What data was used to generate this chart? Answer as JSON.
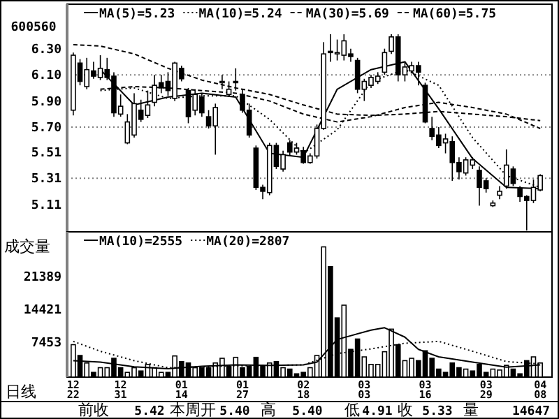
{
  "chart_data": [
    {
      "type": "candlestick",
      "title": "600560",
      "legend": "top",
      "tick_labels": "y",
      "ylim": [
        4.9,
        6.64
      ],
      "yticks": [
        {
          "value": 6.3,
          "label": "6.30"
        },
        {
          "value": 6.1,
          "label": "6.10"
        },
        {
          "value": 5.9,
          "label": "5.90"
        },
        {
          "value": 5.7,
          "label": "5.70"
        },
        5.51,
        5.31,
        5.11
      ],
      "ref_lines": [
        {
          "axis": "y",
          "value": 6.1,
          "color": "#808080",
          "line_style": "dotted"
        },
        {
          "axis": "y",
          "value": 5.7,
          "color": "#808080",
          "line_style": "dotted"
        },
        {
          "axis": "y",
          "value": 5.31,
          "color": "#808080",
          "line_style": "dotted"
        }
      ],
      "ohlc": [
        [
          5.83,
          6.27,
          5.79,
          6.25
        ],
        [
          6.19,
          6.22,
          6.02,
          6.05
        ],
        [
          6.01,
          6.23,
          5.99,
          6.14
        ],
        [
          6.13,
          6.2,
          6.07,
          6.09
        ],
        [
          6.08,
          6.25,
          6.06,
          6.15
        ],
        [
          6.14,
          6.23,
          6.06,
          6.08
        ],
        [
          6.09,
          6.12,
          5.78,
          5.81
        ],
        [
          5.8,
          5.95,
          5.78,
          5.86
        ],
        [
          5.58,
          5.8,
          5.57,
          5.74
        ],
        [
          5.64,
          5.96,
          5.62,
          5.88
        ],
        [
          5.83,
          5.91,
          5.74,
          5.76
        ],
        [
          5.79,
          5.98,
          5.77,
          5.87
        ],
        [
          5.89,
          6.1,
          5.86,
          6.02
        ],
        [
          6.04,
          6.1,
          5.96,
          6.0
        ],
        [
          6.05,
          6.12,
          5.94,
          5.98
        ],
        [
          5.92,
          6.2,
          5.9,
          6.19
        ],
        [
          6.15,
          6.17,
          6.05,
          6.07
        ],
        [
          5.98,
          6.0,
          5.73,
          5.78
        ],
        [
          5.83,
          5.99,
          5.79,
          5.95
        ],
        [
          5.93,
          5.96,
          5.78,
          5.81
        ],
        [
          5.78,
          5.83,
          5.69,
          5.71
        ],
        [
          5.71,
          5.88,
          5.49,
          5.85
        ],
        [
          6.04,
          6.1,
          5.99,
          6.05
        ],
        [
          5.95,
          6.05,
          5.93,
          5.99
        ],
        [
          6.05,
          6.15,
          5.98,
          6.04
        ],
        [
          5.95,
          5.99,
          5.81,
          5.83
        ],
        [
          5.83,
          5.88,
          5.62,
          5.64
        ],
        [
          5.54,
          5.56,
          5.22,
          5.24
        ],
        [
          5.24,
          5.26,
          5.15,
          5.21
        ],
        [
          5.2,
          5.58,
          5.18,
          5.56
        ],
        [
          5.56,
          5.58,
          5.38,
          5.4
        ],
        [
          5.38,
          5.52,
          5.36,
          5.49
        ],
        [
          5.58,
          5.6,
          5.48,
          5.51
        ],
        [
          5.51,
          5.58,
          5.49,
          5.54
        ],
        [
          5.52,
          5.55,
          5.42,
          5.43
        ],
        [
          5.43,
          5.5,
          5.42,
          5.48
        ],
        [
          5.48,
          5.72,
          5.46,
          5.69
        ],
        [
          5.69,
          6.35,
          5.68,
          6.26
        ],
        [
          6.28,
          6.41,
          6.2,
          6.27
        ],
        [
          6.26,
          6.37,
          6.21,
          6.27
        ],
        [
          6.25,
          6.41,
          6.21,
          6.36
        ],
        [
          6.26,
          6.3,
          6.2,
          6.24
        ],
        [
          6.21,
          6.23,
          5.96,
          5.99
        ],
        [
          5.99,
          6.07,
          5.9,
          6.05
        ],
        [
          6.02,
          6.1,
          6.0,
          6.08
        ],
        [
          6.05,
          6.12,
          6.03,
          6.09
        ],
        [
          6.12,
          6.3,
          6.1,
          6.27
        ],
        [
          6.28,
          6.41,
          6.26,
          6.39
        ],
        [
          6.39,
          6.41,
          6.05,
          6.1
        ],
        [
          6.1,
          6.2,
          6.05,
          6.16
        ],
        [
          6.13,
          6.2,
          6.11,
          6.17
        ],
        [
          6.17,
          6.2,
          6.02,
          6.12
        ],
        [
          6.02,
          6.04,
          5.73,
          5.74
        ],
        [
          5.69,
          5.78,
          5.6,
          5.63
        ],
        [
          5.64,
          5.7,
          5.54,
          5.56
        ],
        [
          5.58,
          5.65,
          5.5,
          5.61
        ],
        [
          5.59,
          5.63,
          5.29,
          5.43
        ],
        [
          5.43,
          5.47,
          5.3,
          5.36
        ],
        [
          5.35,
          5.47,
          5.33,
          5.45
        ],
        [
          5.41,
          5.47,
          5.38,
          5.45
        ],
        [
          5.37,
          5.4,
          5.1,
          5.24
        ],
        [
          5.29,
          5.31,
          5.2,
          5.23
        ],
        [
          5.1,
          5.14,
          5.09,
          5.12
        ],
        [
          5.18,
          5.25,
          5.15,
          5.21
        ],
        [
          5.25,
          5.53,
          5.23,
          5.41
        ],
        [
          5.38,
          5.4,
          5.25,
          5.27
        ],
        [
          5.23,
          5.25,
          5.13,
          5.17
        ],
        [
          5.17,
          5.18,
          4.91,
          5.14
        ],
        [
          5.14,
          5.3,
          5.12,
          5.24
        ],
        [
          5.22,
          5.34,
          5.21,
          5.33
        ]
      ],
      "series": [
        {
          "name": "MA(5)=5.23",
          "type": "line",
          "color": "#000000",
          "line_style": "solid",
          "values": [
            null,
            null,
            null,
            null,
            6.14,
            null,
            null,
            null,
            null,
            5.87,
            null,
            null,
            null,
            null,
            5.93,
            null,
            null,
            null,
            null,
            5.96,
            null,
            null,
            null,
            null,
            5.93,
            null,
            null,
            null,
            null,
            5.5,
            null,
            null,
            null,
            null,
            5.47,
            null,
            null,
            null,
            null,
            5.99,
            null,
            null,
            null,
            null,
            6.14,
            null,
            null,
            null,
            null,
            6.2,
            null,
            null,
            null,
            null,
            5.84,
            null,
            null,
            null,
            null,
            5.46,
            null,
            null,
            null,
            null,
            5.24,
            null,
            null,
            null,
            null,
            5.23
          ]
        },
        {
          "name": "MA(10)=5.24",
          "type": "line",
          "color": "#000000",
          "line_style": "dotted",
          "values": [
            null,
            null,
            null,
            null,
            5.98,
            null,
            null,
            null,
            null,
            6.0,
            null,
            null,
            null,
            null,
            5.92,
            null,
            null,
            null,
            null,
            5.94,
            null,
            null,
            null,
            null,
            5.94,
            null,
            null,
            null,
            null,
            5.76,
            null,
            null,
            null,
            null,
            5.5,
            null,
            null,
            null,
            null,
            5.68,
            null,
            null,
            null,
            null,
            6.05,
            null,
            null,
            null,
            null,
            6.14,
            null,
            null,
            null,
            null,
            6.02,
            null,
            null,
            null,
            null,
            5.62,
            null,
            null,
            null,
            null,
            5.33,
            null,
            null,
            null,
            null,
            5.24
          ]
        },
        {
          "name": "MA(30)=5.69",
          "type": "line",
          "color": "#000000",
          "line_style": "dashed",
          "values": [
            null,
            null,
            null,
            null,
            5.99,
            null,
            null,
            null,
            null,
            6.01,
            null,
            null,
            null,
            null,
            6.0,
            null,
            null,
            null,
            null,
            5.98,
            null,
            null,
            null,
            null,
            5.96,
            null,
            null,
            null,
            null,
            5.9,
            null,
            null,
            null,
            null,
            5.8,
            null,
            null,
            null,
            null,
            5.74,
            null,
            null,
            null,
            null,
            5.78,
            null,
            null,
            null,
            null,
            5.85,
            null,
            null,
            null,
            null,
            5.89,
            null,
            null,
            null,
            null,
            5.85,
            null,
            null,
            null,
            null,
            5.8,
            null,
            null,
            null,
            null,
            5.69
          ]
        },
        {
          "name": "MA(60)=5.75",
          "type": "line",
          "color": "#000000",
          "line_style": "dashed",
          "values": [
            6.33,
            null,
            null,
            null,
            6.32,
            null,
            null,
            null,
            null,
            6.26,
            null,
            null,
            null,
            null,
            6.15,
            null,
            null,
            null,
            null,
            6.06,
            null,
            null,
            null,
            null,
            6.0,
            null,
            null,
            null,
            null,
            5.95,
            null,
            null,
            null,
            null,
            5.87,
            null,
            null,
            null,
            null,
            5.8,
            null,
            null,
            null,
            null,
            5.79,
            null,
            null,
            null,
            null,
            5.8,
            null,
            null,
            null,
            null,
            5.82,
            null,
            null,
            null,
            null,
            5.8,
            null,
            null,
            null,
            null,
            5.78,
            null,
            null,
            null,
            null,
            5.75
          ]
        }
      ]
    },
    {
      "type": "bar",
      "ylabel": "成交量",
      "legend": "top",
      "categories": [
        "12\n22",
        null,
        null,
        null,
        null,
        null,
        null,
        "12\n31",
        null,
        null,
        null,
        null,
        null,
        null,
        null,
        null,
        "01\n14",
        null,
        null,
        null,
        null,
        null,
        null,
        null,
        null,
        "01\n27",
        null,
        null,
        null,
        null,
        null,
        null,
        null,
        null,
        "02\n18",
        null,
        null,
        null,
        null,
        null,
        null,
        null,
        null,
        "03\n03",
        null,
        null,
        null,
        null,
        null,
        null,
        null,
        null,
        "03\n16",
        null,
        null,
        null,
        null,
        null,
        null,
        null,
        null,
        "03\n29",
        null,
        null,
        null,
        null,
        null,
        null,
        null,
        "04\n08"
      ],
      "ylim": [
        0,
        30900
      ],
      "yticks": [
        7453,
        14421,
        21389
      ],
      "annotations": [
        "日线",
        "前收",
        "5.42",
        "本周开",
        "5.40",
        "高",
        "5.40",
        "低",
        "4.91",
        "收",
        "5.33",
        "量",
        "14647"
      ],
      "series": [
        {
          "type": "bar",
          "values": [
            6900,
            4600,
            3000,
            1000,
            2000,
            2000,
            4000,
            2000,
            1000,
            2000,
            1300,
            2700,
            2000,
            1000,
            1000,
            4500,
            3300,
            3000,
            2000,
            2000,
            2000,
            3000,
            4000,
            2300,
            4200,
            2000,
            2300,
            4200,
            2300,
            3000,
            3300,
            2000,
            1700,
            700,
            1000,
            2000,
            4600,
            27700,
            23500,
            12600,
            15300,
            5900,
            8100,
            4300,
            2700,
            2700,
            5400,
            10200,
            6900,
            3500,
            4000,
            3500,
            5600,
            4000,
            1700,
            1000,
            3000,
            2000,
            1700,
            1300,
            2700,
            1000,
            1700,
            1500,
            2500,
            1700,
            700,
            3500,
            4300,
            3000
          ],
          "colors": [
            "#ffffff",
            "#000000",
            "#ffffff",
            "#000000",
            "#ffffff",
            "#ffffff",
            "#000000",
            "#000000",
            "#ffffff",
            "#ffffff",
            "#000000",
            "#ffffff",
            "#ffffff",
            "#ffffff",
            "#000000",
            "#ffffff",
            "#000000",
            "#000000",
            "#ffffff",
            "#000000",
            "#000000",
            "#ffffff",
            "#ffffff",
            "#000000",
            "#ffffff",
            "#000000",
            "#000000",
            "#000000",
            "#000000",
            "#ffffff",
            "#000000",
            "#ffffff",
            "#000000",
            "#000000",
            "#000000",
            "#ffffff",
            "#ffffff",
            "#ffffff",
            "#000000",
            "#000000",
            "#ffffff",
            "#000000",
            "#000000",
            "#ffffff",
            "#ffffff",
            "#ffffff",
            "#ffffff",
            "#ffffff",
            "#000000",
            "#ffffff",
            "#ffffff",
            "#000000",
            "#000000",
            "#000000",
            "#000000",
            "#000000",
            "#000000",
            "#000000",
            "#ffffff",
            "#000000",
            "#000000",
            "#000000",
            "#ffffff",
            "#ffffff",
            "#ffffff",
            "#000000",
            "#000000",
            "#000000",
            "#ffffff",
            "#ffffff"
          ]
        },
        {
          "name": "MA(10)=2555",
          "type": "line",
          "color": "#000000",
          "line_style": "solid",
          "values": [
            3500,
            null,
            null,
            null,
            3200,
            null,
            null,
            null,
            null,
            2200,
            null,
            null,
            null,
            null,
            1800,
            null,
            null,
            null,
            null,
            2300,
            null,
            null,
            null,
            null,
            2600,
            null,
            null,
            null,
            null,
            2500,
            null,
            null,
            null,
            null,
            2600,
            null,
            3200,
            null,
            null,
            8000,
            null,
            null,
            null,
            null,
            10000,
            null,
            10500,
            null,
            null,
            8500,
            null,
            5900,
            null,
            null,
            4300,
            null,
            null,
            null,
            null,
            3200,
            null,
            null,
            null,
            null,
            2100,
            null,
            null,
            null,
            null,
            2600
          ]
        },
        {
          "name": "MA(20)=2807",
          "type": "line",
          "color": "#000000",
          "line_style": "dotted",
          "values": [
            7600,
            null,
            null,
            null,
            5500,
            null,
            null,
            null,
            null,
            3500,
            null,
            null,
            null,
            null,
            2000,
            null,
            null,
            null,
            null,
            2200,
            null,
            null,
            null,
            null,
            2400,
            null,
            null,
            null,
            null,
            2500,
            null,
            null,
            null,
            null,
            2600,
            null,
            null,
            null,
            null,
            5000,
            null,
            null,
            null,
            null,
            6000,
            null,
            null,
            null,
            null,
            7200,
            null,
            null,
            null,
            null,
            7600,
            null,
            null,
            null,
            null,
            5500,
            null,
            null,
            null,
            null,
            3300,
            null,
            null,
            null,
            null,
            2800
          ]
        }
      ]
    }
  ]
}
